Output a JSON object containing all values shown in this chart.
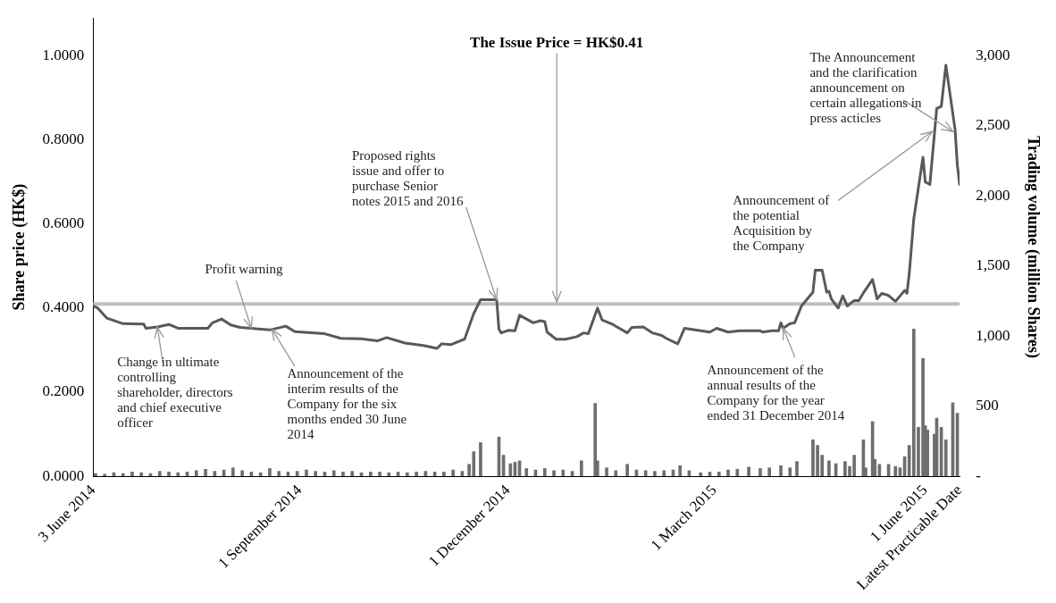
{
  "chart_data": {
    "type": "line",
    "ylabel": "Share price (HK$)",
    "y2label": "Trading volume (million Shares)",
    "xlim": [
      "2014-06-03",
      "2015-06-16"
    ],
    "xticks": [
      {
        "value": "2014-06-03",
        "label": "3 June 2014"
      },
      {
        "value": "2014-09-01",
        "label": "1 September 2014"
      },
      {
        "value": "2014-12-01",
        "label": "1 December 2014"
      },
      {
        "value": "2015-03-01",
        "label": "1 March 2015"
      },
      {
        "value": "2015-06-01",
        "label": "1 June 2015"
      },
      {
        "value": "2015-06-16",
        "label": "Latest Practicable Date"
      }
    ],
    "ylim": [
      0,
      1.09
    ],
    "yticks": [
      {
        "value": 0,
        "label": "0.0000"
      },
      {
        "value": 0.2,
        "label": "0.2000"
      },
      {
        "value": 0.4,
        "label": "0.4000"
      },
      {
        "value": 0.6,
        "label": "0.6000"
      },
      {
        "value": 0.8,
        "label": "0.8000"
      },
      {
        "value": 1,
        "label": "1.0000"
      }
    ],
    "y2lim": [
      0,
      3270
    ],
    "y2ticks": [
      {
        "value": 0,
        "label": "-"
      },
      {
        "value": 500,
        "label": "500"
      },
      {
        "value": 1000,
        "label": "1,000"
      },
      {
        "value": 1500,
        "label": "1,500"
      },
      {
        "value": 2000,
        "label": "2,000"
      },
      {
        "value": 2500,
        "label": "2,500"
      },
      {
        "value": 3000,
        "label": "3,000"
      }
    ],
    "marker": "none",
    "series": [
      {
        "color": "#595959",
        "x": [
          "2014-06-03",
          "2014-06-05",
          "2014-06-09",
          "2014-06-16",
          "2014-06-25",
          "2014-06-26",
          "2014-07-01",
          "2014-07-06",
          "2014-07-10",
          "2014-07-23",
          "2014-07-25",
          "2014-07-29",
          "2014-08-02",
          "2014-08-06",
          "2014-08-19",
          "2014-08-26",
          "2014-08-30",
          "2014-09-12",
          "2014-09-19",
          "2014-09-28",
          "2014-10-05",
          "2014-10-09",
          "2014-10-17",
          "2014-10-25",
          "2014-10-31",
          "2014-11-02",
          "2014-11-06",
          "2014-11-12",
          "2014-11-16",
          "2014-11-19",
          "2014-11-26",
          "2014-11-27",
          "2014-11-28",
          "2014-12-01",
          "2014-12-04",
          "2014-12-06",
          "2014-12-12",
          "2014-12-15",
          "2014-12-17",
          "2014-12-18",
          "2014-12-22",
          "2014-12-26",
          "2014-12-31",
          "2015-01-03",
          "2015-01-05",
          "2015-01-09",
          "2015-01-11",
          "2015-01-15",
          "2015-01-22",
          "2015-01-24",
          "2015-01-29",
          "2015-02-02",
          "2015-02-06",
          "2015-02-08",
          "2015-02-13",
          "2015-02-16",
          "2015-02-27",
          "2015-03-02",
          "2015-03-07",
          "2015-03-12",
          "2015-03-21",
          "2015-03-22",
          "2015-03-26",
          "2015-03-29",
          "2015-03-30",
          "2015-03-31",
          "2015-04-03",
          "2015-04-05",
          "2015-04-08",
          "2015-04-13",
          "2015-04-14",
          "2015-04-17",
          "2015-04-19",
          "2015-04-20",
          "2015-04-21",
          "2015-04-24",
          "2015-04-26",
          "2015-04-28",
          "2015-05-01",
          "2015-05-03",
          "2015-05-05",
          "2015-05-09",
          "2015-05-11",
          "2015-05-13",
          "2015-05-16",
          "2015-05-19",
          "2015-05-23",
          "2015-05-24",
          "2015-05-25",
          "2015-05-27",
          "2015-05-31",
          "2015-06-01",
          "2015-06-03",
          "2015-06-06",
          "2015-06-08",
          "2015-06-10",
          "2015-06-14",
          "2015-06-15",
          "2015-06-16"
        ],
        "values": [
          0.405,
          0.4,
          0.376,
          0.363,
          0.362,
          0.352,
          0.355,
          0.361,
          0.352,
          0.352,
          0.365,
          0.374,
          0.36,
          0.354,
          0.348,
          0.357,
          0.344,
          0.339,
          0.328,
          0.327,
          0.322,
          0.33,
          0.317,
          0.311,
          0.304,
          0.315,
          0.313,
          0.326,
          0.387,
          0.42,
          0.42,
          0.35,
          0.341,
          0.347,
          0.346,
          0.383,
          0.365,
          0.37,
          0.368,
          0.343,
          0.326,
          0.326,
          0.332,
          0.341,
          0.339,
          0.4,
          0.372,
          0.363,
          0.341,
          0.354,
          0.355,
          0.341,
          0.335,
          0.328,
          0.315,
          0.352,
          0.343,
          0.352,
          0.343,
          0.346,
          0.346,
          0.343,
          0.346,
          0.346,
          0.365,
          0.352,
          0.363,
          0.365,
          0.405,
          0.438,
          0.49,
          0.49,
          0.438,
          0.44,
          0.422,
          0.4,
          0.429,
          0.405,
          0.418,
          0.418,
          0.436,
          0.468,
          0.422,
          0.435,
          0.43,
          0.416,
          0.442,
          0.435,
          0.481,
          0.613,
          0.759,
          0.7,
          0.694,
          0.875,
          0.88,
          0.978,
          0.825,
          0.74,
          0.694
        ]
      },
      {
        "type": "bar",
        "axis": "y2",
        "color": "#6e6e6e",
        "x": [
          "2014-06-04",
          "2014-06-08",
          "2014-06-12",
          "2014-06-16",
          "2014-06-20",
          "2014-06-24",
          "2014-06-28",
          "2014-07-02",
          "2014-07-06",
          "2014-07-10",
          "2014-07-14",
          "2014-07-18",
          "2014-07-22",
          "2014-07-26",
          "2014-07-30",
          "2014-08-03",
          "2014-08-07",
          "2014-08-11",
          "2014-08-15",
          "2014-08-19",
          "2014-08-23",
          "2014-08-27",
          "2014-08-31",
          "2014-09-04",
          "2014-09-08",
          "2014-09-12",
          "2014-09-16",
          "2014-09-20",
          "2014-09-24",
          "2014-09-28",
          "2014-10-02",
          "2014-10-06",
          "2014-10-10",
          "2014-10-14",
          "2014-10-18",
          "2014-10-22",
          "2014-10-26",
          "2014-10-30",
          "2014-11-03",
          "2014-11-07",
          "2014-11-11",
          "2014-11-14",
          "2014-11-16",
          "2014-11-19",
          "2014-11-27",
          "2014-11-29",
          "2014-12-02",
          "2014-12-04",
          "2014-12-06",
          "2014-12-09",
          "2014-12-13",
          "2014-12-17",
          "2014-12-21",
          "2014-12-25",
          "2014-12-29",
          "2015-01-02",
          "2015-01-08",
          "2015-01-09",
          "2015-01-13",
          "2015-01-17",
          "2015-01-22",
          "2015-01-26",
          "2015-01-30",
          "2015-02-03",
          "2015-02-07",
          "2015-02-11",
          "2015-02-14",
          "2015-02-18",
          "2015-02-23",
          "2015-02-27",
          "2015-03-03",
          "2015-03-07",
          "2015-03-11",
          "2015-03-16",
          "2015-03-21",
          "2015-03-25",
          "2015-03-30",
          "2015-04-03",
          "2015-04-06",
          "2015-04-13",
          "2015-04-15",
          "2015-04-17",
          "2015-04-20",
          "2015-04-23",
          "2015-04-27",
          "2015-04-29",
          "2015-05-01",
          "2015-05-05",
          "2015-05-06",
          "2015-05-09",
          "2015-05-10",
          "2015-05-12",
          "2015-05-16",
          "2015-05-19",
          "2015-05-21",
          "2015-05-23",
          "2015-05-25",
          "2015-05-27",
          "2015-05-29",
          "2015-05-31",
          "2015-06-01",
          "2015-06-02",
          "2015-06-05",
          "2015-06-06",
          "2015-06-08",
          "2015-06-10",
          "2015-06-13",
          "2015-06-15"
        ],
        "values": [
          20,
          15,
          25,
          20,
          30,
          25,
          20,
          35,
          30,
          25,
          30,
          40,
          50,
          35,
          45,
          60,
          40,
          30,
          25,
          55,
          35,
          30,
          35,
          45,
          35,
          30,
          40,
          30,
          35,
          25,
          30,
          30,
          25,
          30,
          25,
          30,
          35,
          30,
          30,
          45,
          35,
          85,
          175,
          240,
          280,
          150,
          90,
          100,
          110,
          55,
          45,
          55,
          40,
          45,
          35,
          110,
          520,
          110,
          60,
          40,
          85,
          45,
          40,
          35,
          40,
          45,
          75,
          40,
          25,
          30,
          30,
          45,
          50,
          65,
          55,
          60,
          75,
          60,
          105,
          260,
          220,
          150,
          110,
          90,
          105,
          70,
          150,
          260,
          60,
          390,
          120,
          85,
          85,
          70,
          60,
          140,
          220,
          1050,
          350,
          840,
          360,
          330,
          300,
          415,
          350,
          260,
          525,
          450
        ]
      }
    ],
    "ref_lines": [
      {
        "axis": "y",
        "value": 0.41,
        "label": "The Issue Price = HK$0.41",
        "color": "#bfbfbf"
      }
    ],
    "annotations": [
      {
        "text": "Change in ultimate controlling shareholder, directors and chief executive officer",
        "x": "2014-07-01",
        "y": 0.355
      },
      {
        "text": "Profit warning",
        "x": "2014-08-11",
        "y": 0.352
      },
      {
        "text": "Announcement of the interim results of the Company for the six months ended 30 June 2014",
        "x": "2014-08-20",
        "y": 0.35
      },
      {
        "text": "Proposed rights issue and offer to purchase Senior notes 2015 and 2016",
        "x": "2014-11-26",
        "y": 0.42
      },
      {
        "text": "Announcement of the annual results of the Company for the year ended 31 December 2014",
        "x": "2015-03-31",
        "y": 0.352
      },
      {
        "text": "Announcement of the potential Acquisition by the Company",
        "x": "2015-06-04",
        "y": 0.82
      },
      {
        "text": "The Announcement and the clarification announcement on certain allegations in press acticles",
        "x": "2015-06-13",
        "y": 0.82
      }
    ]
  }
}
